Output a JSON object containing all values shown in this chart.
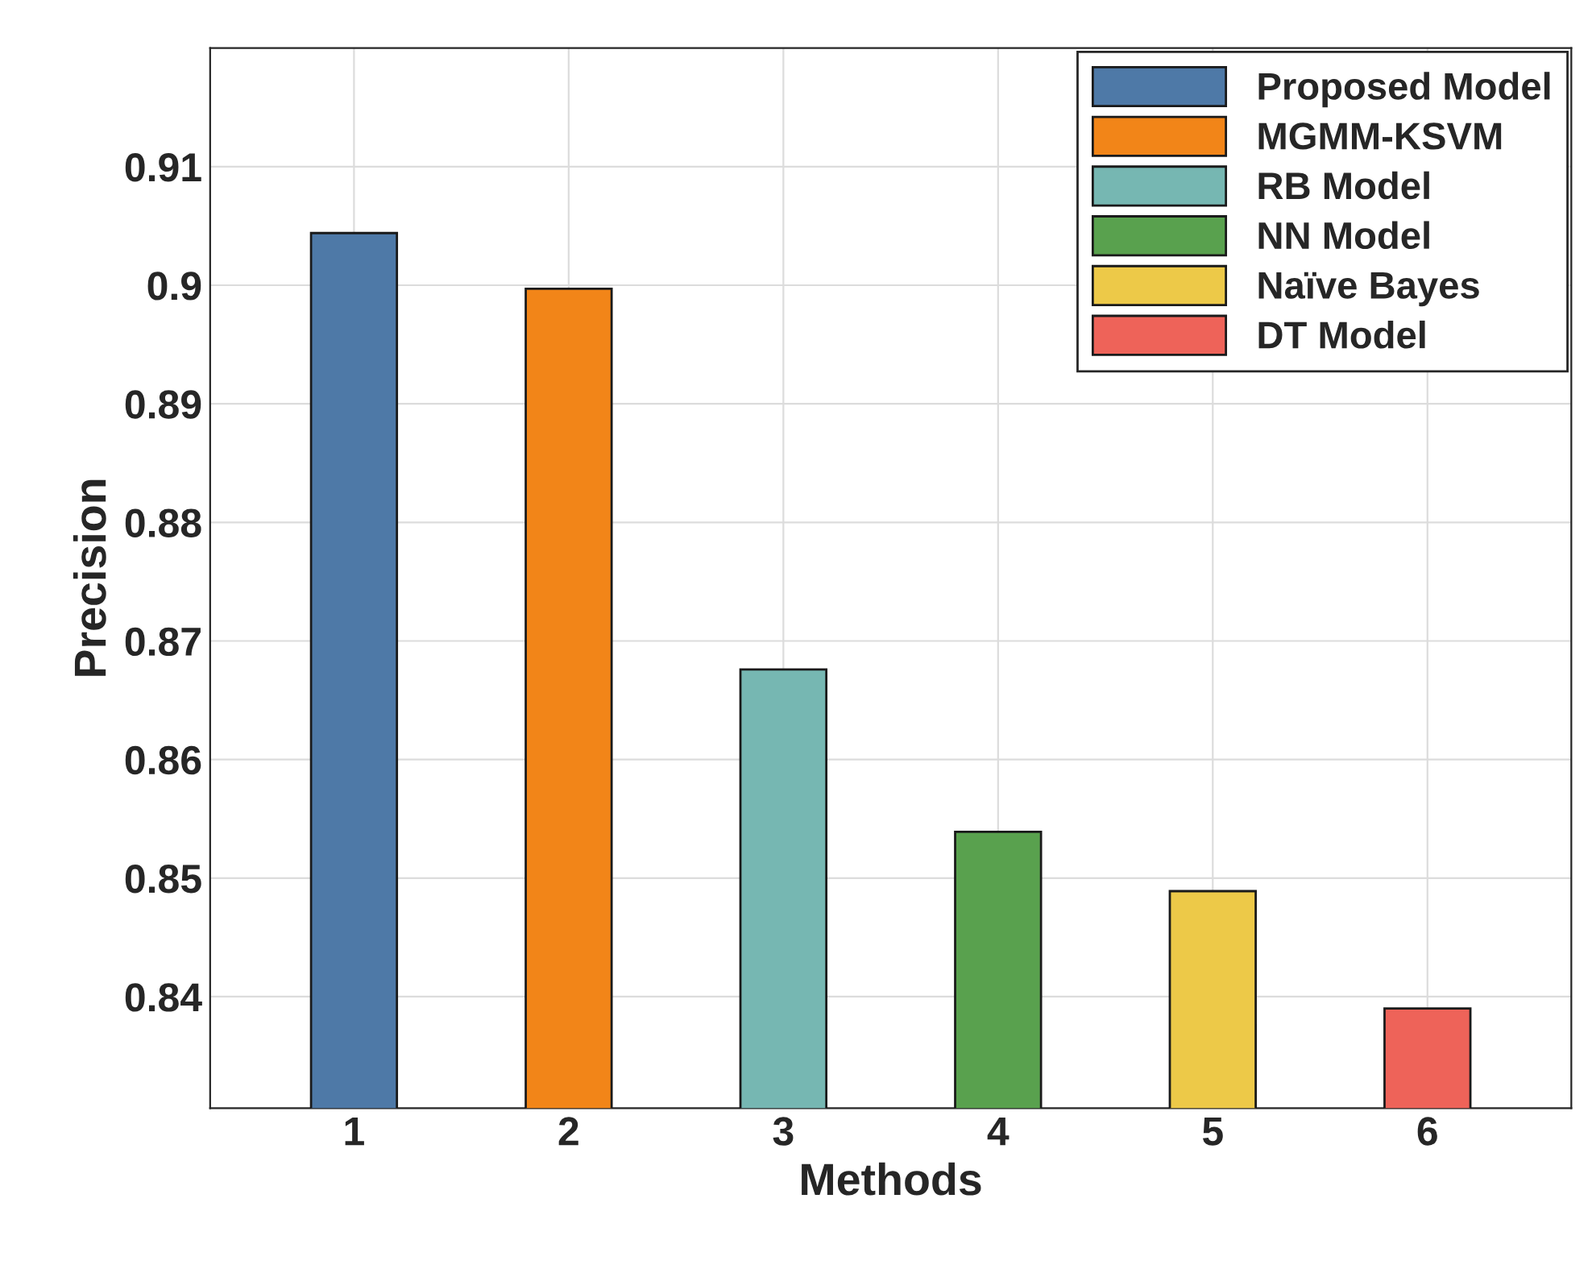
{
  "chart_data": {
    "type": "bar",
    "xlabel": "Methods",
    "ylabel": "Precision",
    "categories": [
      "1",
      "2",
      "3",
      "4",
      "5",
      "6"
    ],
    "series": [
      {
        "name": "Proposed Model",
        "color": "#4e79a7",
        "values": [
          0.9044,
          null,
          null,
          null,
          null,
          null
        ]
      },
      {
        "name": "MGMM-KSVM",
        "color": "#f28518",
        "values": [
          null,
          0.8997,
          null,
          null,
          null,
          null
        ]
      },
      {
        "name": "RB Model",
        "color": "#76b7b2",
        "values": [
          null,
          null,
          0.8676,
          null,
          null,
          null
        ]
      },
      {
        "name": "NN Model",
        "color": "#59a14e",
        "values": [
          null,
          null,
          null,
          0.8539,
          null,
          null
        ]
      },
      {
        "name": "Naïve Bayes",
        "color": "#edc948",
        "values": [
          null,
          null,
          null,
          null,
          0.8489,
          null
        ]
      },
      {
        "name": "DT Model",
        "color": "#ee6359",
        "values": [
          null,
          null,
          null,
          null,
          null,
          0.839
        ]
      }
    ],
    "ylim": [
      0.8306,
      0.92
    ],
    "yticks": [
      {
        "value": 0.84,
        "label": "0.84"
      },
      {
        "value": 0.85,
        "label": "0.85"
      },
      {
        "value": 0.86,
        "label": "0.86"
      },
      {
        "value": 0.87,
        "label": "0.87"
      },
      {
        "value": 0.88,
        "label": "0.88"
      },
      {
        "value": 0.89,
        "label": "0.89"
      },
      {
        "value": 0.9,
        "label": "0.9"
      },
      {
        "value": 0.91,
        "label": "0.91"
      }
    ],
    "grid": true,
    "legend": "top right"
  }
}
